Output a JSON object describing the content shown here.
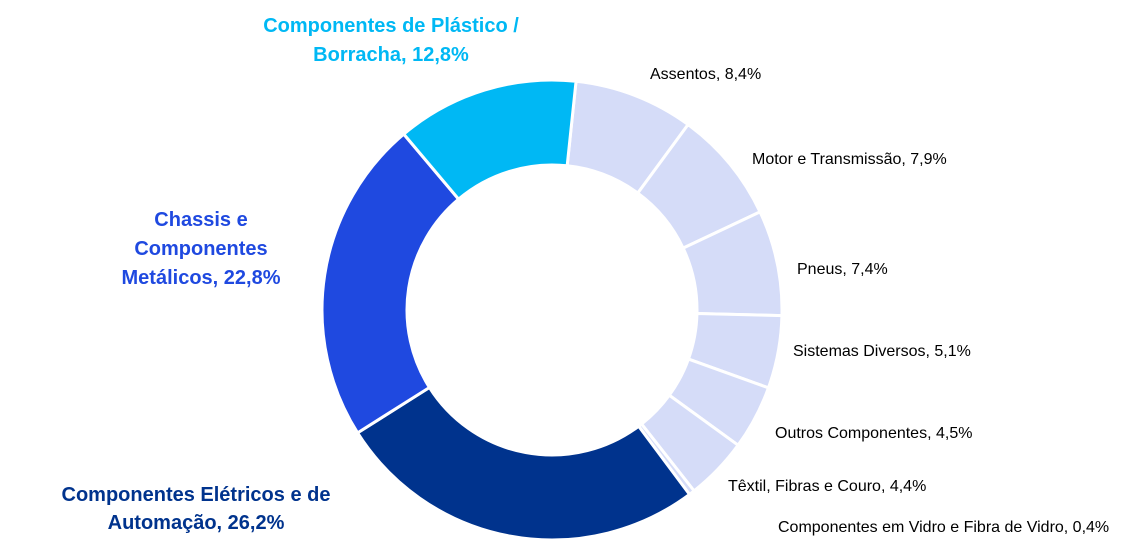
{
  "chart_data": {
    "type": "donut",
    "values": [
      8.4,
      7.9,
      7.4,
      5.1,
      4.5,
      4.4,
      0.4,
      26.2,
      22.8,
      12.8
    ],
    "value_labels": [
      "Assentos, 8,4%",
      "Motor e Transmissão, 7,9%",
      "Pneus, 7,4%",
      "Sistemas Diversos, 5,1%",
      "Outros Componentes, 4,5%",
      "Têxtil, Fibras e Couro, 4,4%",
      "Componentes em Vidro e Fibra de Vidro, 0,4%",
      "Componentes Elétricos e de\nAutomação, 26,2%",
      "Chassis e\nComponentes\nMetálicos, 22,8%",
      "Componentes de Plástico /\nBorracha, 12,8%"
    ],
    "colors": [
      "#d5dcf8",
      "#d5dcf8",
      "#d5dcf8",
      "#d5dcf8",
      "#d5dcf8",
      "#d5dcf8",
      "#d5dcf8",
      "#00338d",
      "#1f49e0",
      "#00b8f4"
    ]
  }
}
